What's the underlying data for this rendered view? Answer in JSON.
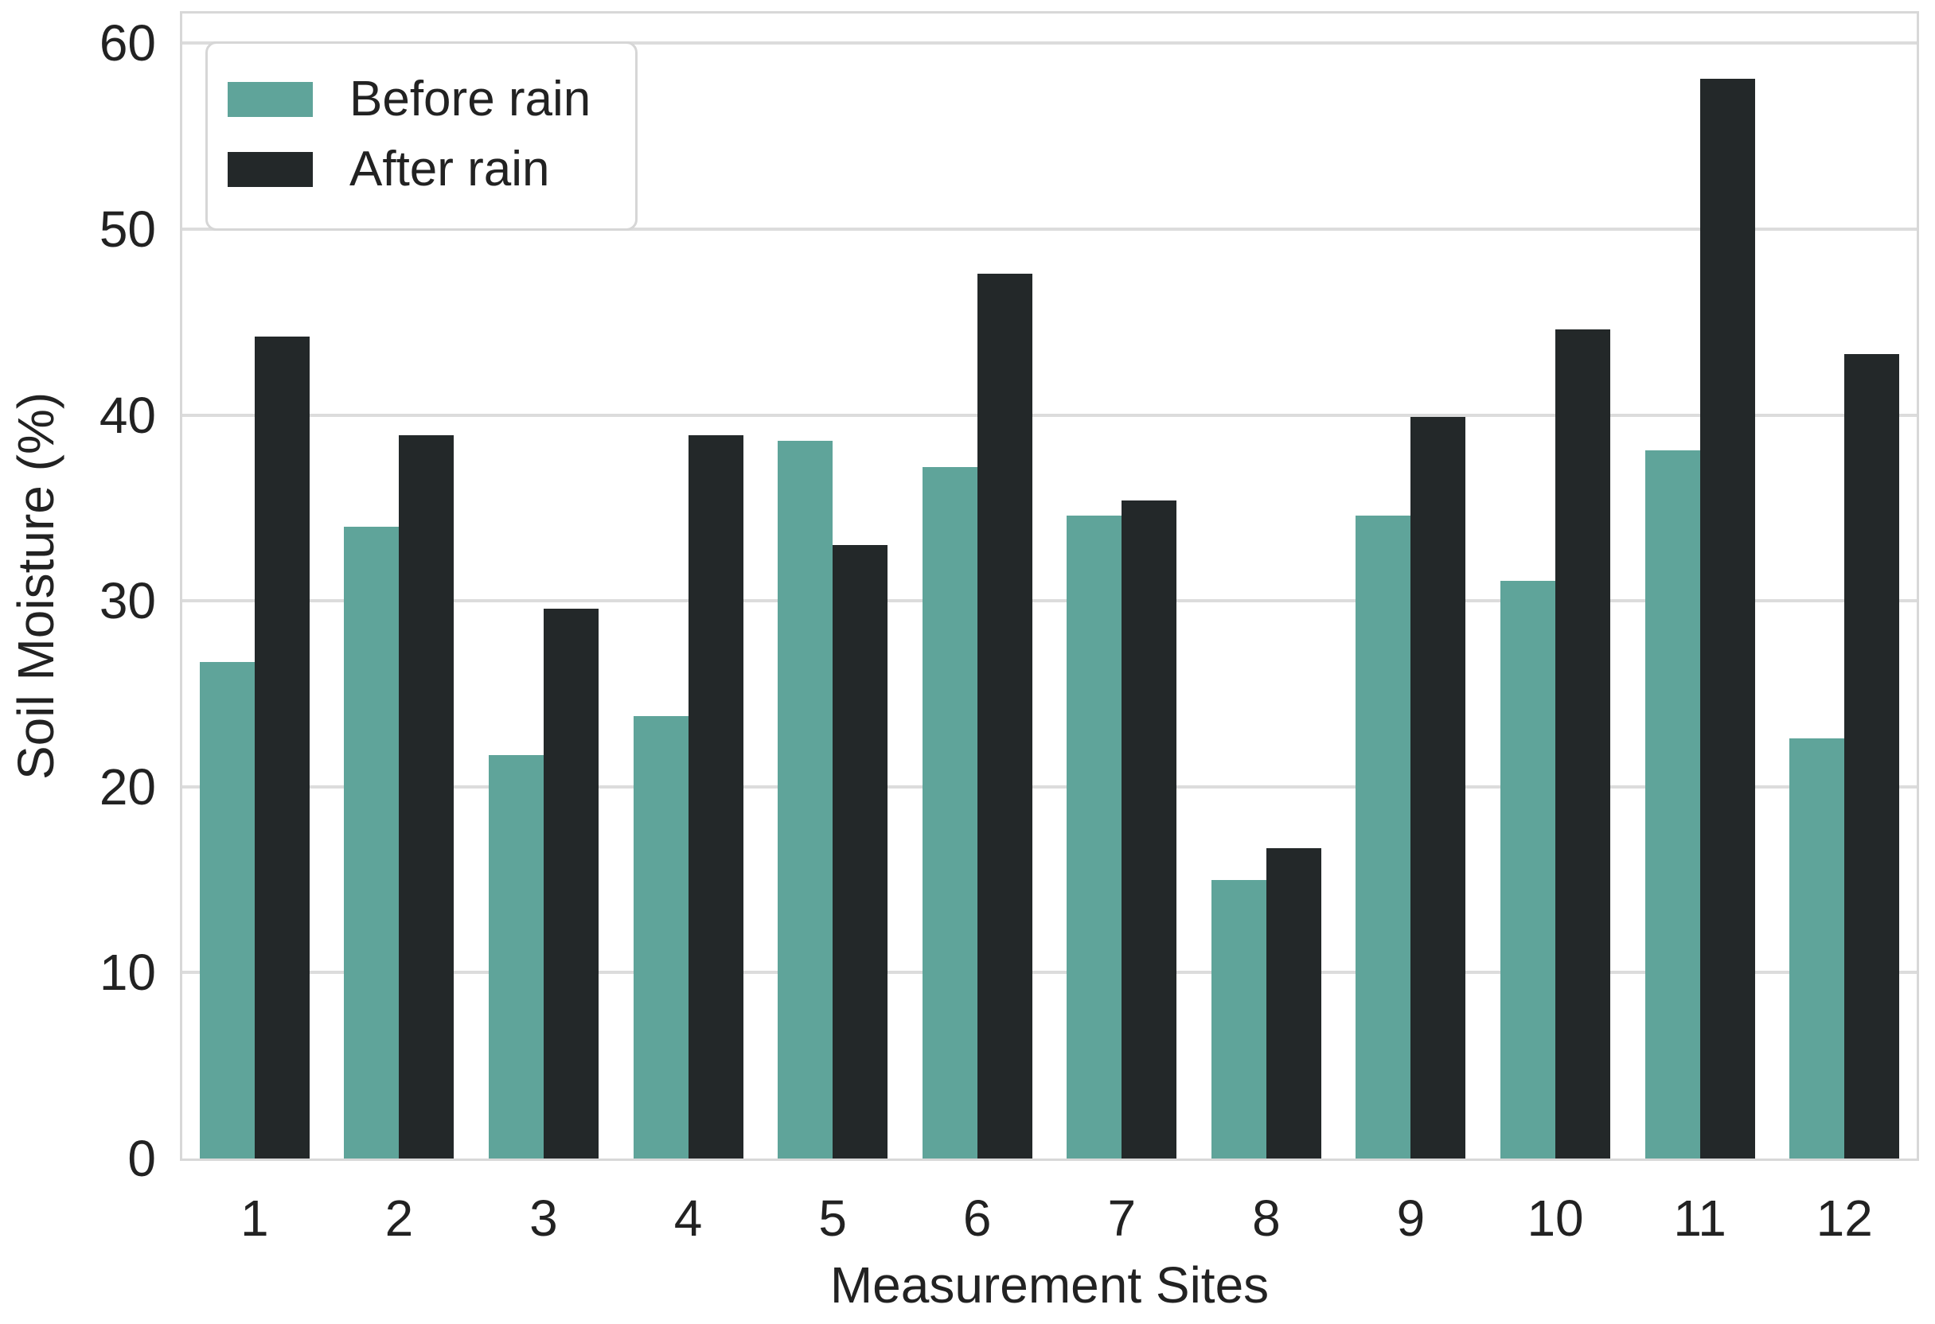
{
  "chart_data": {
    "type": "bar",
    "title": "",
    "categories": [
      "1",
      "2",
      "3",
      "4",
      "5",
      "6",
      "7",
      "8",
      "9",
      "10",
      "11",
      "12"
    ],
    "series": [
      {
        "name": "Before rain",
        "color": "#5fa49a",
        "values": [
          26.7,
          34.0,
          21.7,
          23.8,
          38.6,
          37.2,
          34.6,
          15.0,
          34.6,
          31.1,
          38.1,
          22.6
        ]
      },
      {
        "name": "After rain",
        "color": "#232829",
        "values": [
          44.2,
          38.9,
          29.6,
          38.9,
          33.0,
          47.6,
          35.4,
          16.7,
          39.9,
          44.6,
          58.1,
          43.3
        ]
      }
    ],
    "xlabel": "Measurement Sites",
    "ylabel": "Soil Moisture (%)",
    "ylim": [
      0,
      61.6
    ],
    "y_ticks": [
      0,
      10,
      20,
      30,
      40,
      50,
      60
    ],
    "grid": "horizontal",
    "legend_position": "upper-left",
    "bar_group_fraction": 0.76
  },
  "styles": {
    "background": "#ffffff",
    "grid_color": "#dcdcdc",
    "spine_color": "#d8d8d8",
    "text_color": "#222222",
    "before_rain_color": "#5fa49a",
    "after_rain_color": "#232829"
  }
}
